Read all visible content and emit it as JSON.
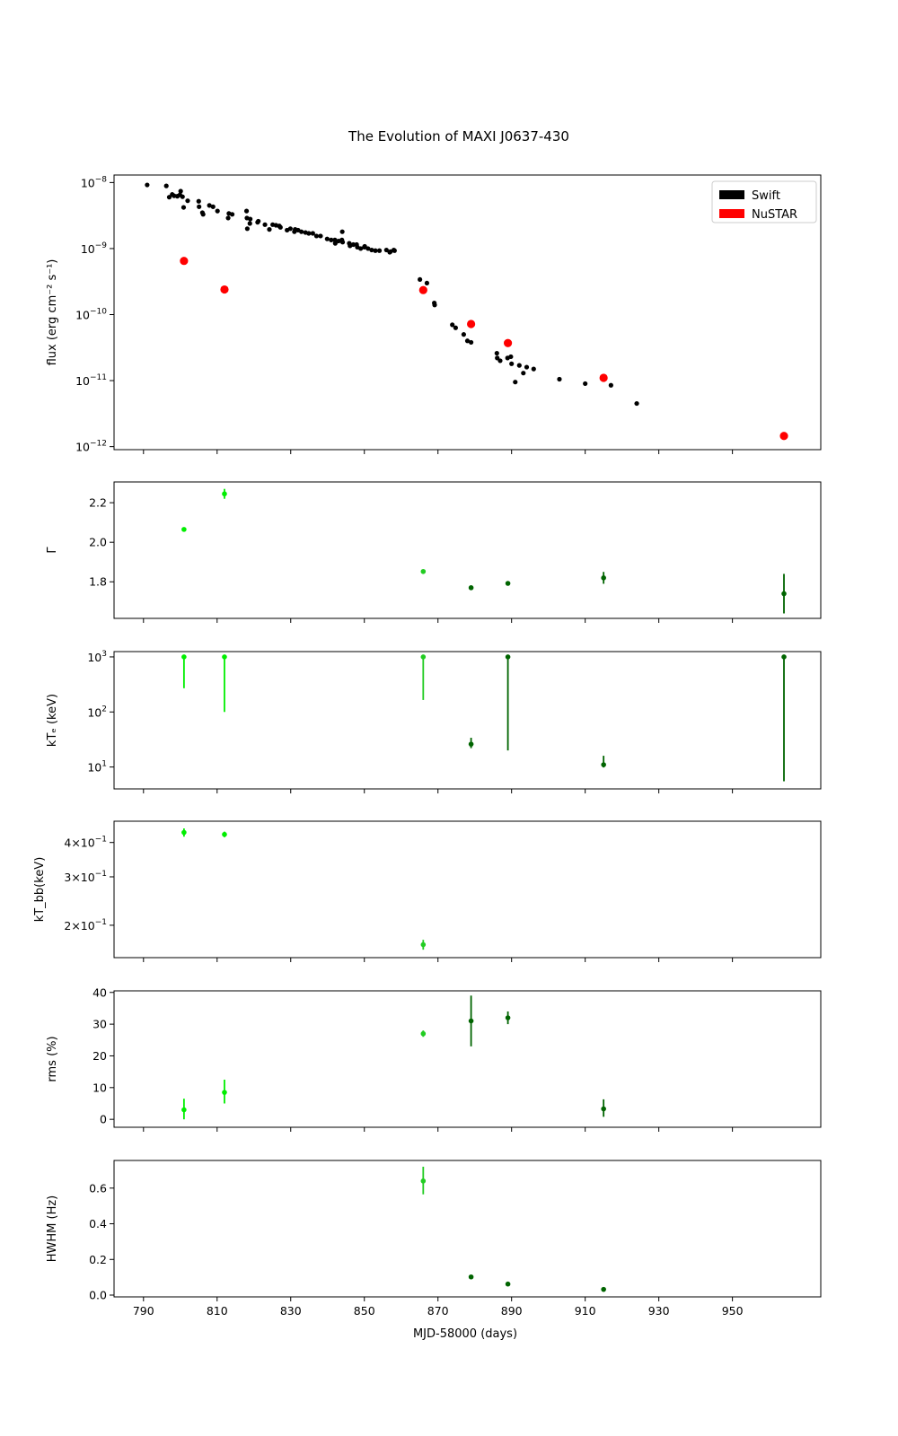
{
  "title": "The Evolution of MAXI J0637-430",
  "xlabel": "MJD-58000 (days)",
  "x_ticks": [
    790,
    810,
    830,
    850,
    870,
    890,
    910,
    930,
    950
  ],
  "colors": {
    "swift": "#000000",
    "nustar": "#ff0000",
    "early": "#00ee00",
    "mid": "#22cc22",
    "late": "#006400"
  },
  "chart_data": [
    {
      "type": "scatter",
      "ylabel": "flux (erg cm⁻² s⁻¹)",
      "yscale": "log",
      "ylim": [
        9e-13,
        1.3e-08
      ],
      "y_ticks": [
        {
          "v": 1e-08,
          "m": "10",
          "e": "−8"
        },
        {
          "v": 1e-09,
          "m": "10",
          "e": "−9"
        },
        {
          "v": 1e-10,
          "m": "10",
          "e": "−10"
        },
        {
          "v": 1e-11,
          "m": "10",
          "e": "−11"
        },
        {
          "v": 1e-12,
          "m": "10",
          "e": "−12"
        }
      ],
      "legend": {
        "placement": "top-right",
        "entries": [
          "Swift",
          "NuSTAR"
        ]
      },
      "series": [
        {
          "name": "Swift",
          "color": "#000000",
          "points": [
            [
              791.0,
              9.2e-09
            ],
            [
              796.2,
              8.9e-09
            ],
            [
              797.0,
              6e-09
            ],
            [
              797.8,
              6.6e-09
            ],
            [
              798.3,
              6.3e-09
            ],
            [
              799.2,
              6.2e-09
            ],
            [
              799.9,
              6.5e-09
            ],
            [
              800.1,
              7.4e-09
            ],
            [
              800.6,
              6.1e-09
            ],
            [
              800.9,
              4.2e-09
            ],
            [
              802.0,
              5.3e-09
            ],
            [
              805.0,
              5.2e-09
            ],
            [
              805.1,
              4.3e-09
            ],
            [
              806.0,
              3.5e-09
            ],
            [
              806.2,
              3.3e-09
            ],
            [
              807.9,
              4.5e-09
            ],
            [
              808.9,
              4.3e-09
            ],
            [
              810.1,
              3.7e-09
            ],
            [
              813.0,
              2.9e-09
            ],
            [
              813.2,
              3.4e-09
            ],
            [
              814.1,
              3.3e-09
            ],
            [
              818.0,
              3.7e-09
            ],
            [
              818.1,
              2.9e-09
            ],
            [
              818.2,
              2e-09
            ],
            [
              818.9,
              2.4e-09
            ],
            [
              819.0,
              2.8e-09
            ],
            [
              821.0,
              2.5e-09
            ],
            [
              821.2,
              2.6e-09
            ],
            [
              823.0,
              2.3e-09
            ],
            [
              824.2,
              1.95e-09
            ],
            [
              825.1,
              2.3e-09
            ],
            [
              826.0,
              2.25e-09
            ],
            [
              826.9,
              2.2e-09
            ],
            [
              827.2,
              2.1e-09
            ],
            [
              829.0,
              1.9e-09
            ],
            [
              829.9,
              2e-09
            ],
            [
              831.0,
              1.8e-09
            ],
            [
              831.2,
              1.95e-09
            ],
            [
              832.0,
              1.9e-09
            ],
            [
              832.9,
              1.8e-09
            ],
            [
              834.0,
              1.75e-09
            ],
            [
              834.9,
              1.7e-09
            ],
            [
              836.0,
              1.7e-09
            ],
            [
              837.0,
              1.55e-09
            ],
            [
              838.1,
              1.55e-09
            ],
            [
              839.9,
              1.4e-09
            ],
            [
              841.0,
              1.35e-09
            ],
            [
              842.0,
              1.35e-09
            ],
            [
              842.1,
              1.2e-09
            ],
            [
              843.0,
              1.3e-09
            ],
            [
              843.9,
              1.35e-09
            ],
            [
              844.0,
              1.8e-09
            ],
            [
              844.1,
              1.25e-09
            ],
            [
              845.9,
              1.2e-09
            ],
            [
              846.1,
              1.1e-09
            ],
            [
              847.0,
              1.15e-09
            ],
            [
              847.9,
              1.15e-09
            ],
            [
              848.1,
              1.05e-09
            ],
            [
              849.0,
              1e-09
            ],
            [
              850.0,
              1.05e-09
            ],
            [
              850.1,
              1.08e-09
            ],
            [
              851.0,
              1e-09
            ],
            [
              852.0,
              9.5e-10
            ],
            [
              853.0,
              9.3e-10
            ],
            [
              854.1,
              9.3e-10
            ],
            [
              856.0,
              9.5e-10
            ],
            [
              856.9,
              8.8e-10
            ],
            [
              857.1,
              9e-10
            ],
            [
              858.0,
              9.5e-10
            ],
            [
              858.2,
              9.3e-10
            ],
            [
              865.1,
              3.4e-10
            ],
            [
              867.0,
              3e-10
            ],
            [
              869.0,
              1.5e-10
            ],
            [
              869.1,
              1.4e-10
            ],
            [
              873.9,
              7e-11
            ],
            [
              874.8,
              6.3e-11
            ],
            [
              877.0,
              5e-11
            ],
            [
              878.0,
              4e-11
            ],
            [
              879.0,
              3.8e-11
            ],
            [
              886.0,
              2.6e-11
            ],
            [
              886.1,
              2.2e-11
            ],
            [
              886.9,
              2e-11
            ],
            [
              888.9,
              2.2e-11
            ],
            [
              889.8,
              2.3e-11
            ],
            [
              890.0,
              1.8e-11
            ],
            [
              891.0,
              9.5e-12
            ],
            [
              892.1,
              1.7e-11
            ],
            [
              893.2,
              1.3e-11
            ],
            [
              894.1,
              1.6e-11
            ],
            [
              896.0,
              1.5e-11
            ],
            [
              903.0,
              1.05e-11
            ],
            [
              910.0,
              9e-12
            ],
            [
              917.0,
              8.5e-12
            ],
            [
              924.0,
              4.5e-12
            ]
          ]
        },
        {
          "name": "NuSTAR",
          "color": "#ff0000",
          "points": [
            [
              801.0,
              6.5e-10
            ],
            [
              812.0,
              2.4e-10
            ],
            [
              866.0,
              2.35e-10
            ],
            [
              879.0,
              7.2e-11
            ],
            [
              889.0,
              3.7e-11
            ],
            [
              915.0,
              1.1e-11
            ],
            [
              964.0,
              1.45e-12
            ]
          ]
        }
      ]
    },
    {
      "type": "scatter",
      "ylabel": "Γ",
      "yscale": "linear",
      "ylim": [
        1.615,
        2.305
      ],
      "y_ticks": [
        {
          "v": 1.8,
          "t": "1.8"
        },
        {
          "v": 2.0,
          "t": "2.0"
        },
        {
          "v": 2.2,
          "t": "2.2"
        }
      ],
      "points": [
        {
          "x": 801,
          "y": 2.065,
          "lo": 2.065,
          "hi": 2.065,
          "c": "early"
        },
        {
          "x": 812,
          "y": 2.245,
          "lo": 2.22,
          "hi": 2.27,
          "c": "early"
        },
        {
          "x": 866,
          "y": 1.852,
          "lo": 1.852,
          "hi": 1.852,
          "c": "mid"
        },
        {
          "x": 879,
          "y": 1.77,
          "lo": 1.76,
          "hi": 1.78,
          "c": "late"
        },
        {
          "x": 889,
          "y": 1.792,
          "lo": 1.788,
          "hi": 1.796,
          "c": "late"
        },
        {
          "x": 915,
          "y": 1.82,
          "lo": 1.79,
          "hi": 1.85,
          "c": "late"
        },
        {
          "x": 964,
          "y": 1.74,
          "lo": 1.64,
          "hi": 1.84,
          "c": "late"
        }
      ]
    },
    {
      "type": "scatter",
      "ylabel": "kTₑ (keV)",
      "yscale": "log",
      "ylim": [
        4,
        1250
      ],
      "y_ticks": [
        {
          "v": 10,
          "m": "10",
          "e": "1"
        },
        {
          "v": 100,
          "m": "10",
          "e": "2"
        },
        {
          "v": 1000,
          "m": "10",
          "e": "3"
        }
      ],
      "points": [
        {
          "x": 801,
          "y": 1000,
          "lo": 270,
          "hi": 1000,
          "c": "early"
        },
        {
          "x": 812,
          "y": 1000,
          "lo": 100,
          "hi": 1000,
          "c": "early"
        },
        {
          "x": 866,
          "y": 1000,
          "lo": 165,
          "hi": 1000,
          "c": "mid"
        },
        {
          "x": 879,
          "y": 26,
          "lo": 22,
          "hi": 34,
          "c": "late"
        },
        {
          "x": 889,
          "y": 1000,
          "lo": 20,
          "hi": 1000,
          "c": "late"
        },
        {
          "x": 915,
          "y": 11,
          "lo": 9.8,
          "hi": 16,
          "c": "late"
        },
        {
          "x": 964,
          "y": 1000,
          "lo": 5.5,
          "hi": 1000,
          "c": "late"
        }
      ]
    },
    {
      "type": "scatter",
      "ylabel": "kT_bb(keV)",
      "yscale": "log",
      "ylim": [
        0.1525,
        0.478
      ],
      "y_ticks": [
        {
          "v": 0.2,
          "m": "2×10",
          "e": "−1"
        },
        {
          "v": 0.3,
          "m": "3×10",
          "e": "−1"
        },
        {
          "v": 0.4,
          "m": "4×10",
          "e": "−1"
        }
      ],
      "points": [
        {
          "x": 801,
          "y": 0.435,
          "lo": 0.42,
          "hi": 0.45,
          "c": "early"
        },
        {
          "x": 812,
          "y": 0.428,
          "lo": 0.418,
          "hi": 0.438,
          "c": "early"
        },
        {
          "x": 866,
          "y": 0.17,
          "lo": 0.163,
          "hi": 0.177,
          "c": "mid"
        }
      ]
    },
    {
      "type": "scatter",
      "ylabel": "rms (%)",
      "yscale": "linear",
      "ylim": [
        -2.5,
        40.5
      ],
      "y_ticks": [
        {
          "v": 0,
          "t": "0"
        },
        {
          "v": 10,
          "t": "10"
        },
        {
          "v": 20,
          "t": "20"
        },
        {
          "v": 30,
          "t": "30"
        },
        {
          "v": 40,
          "t": "40"
        }
      ],
      "points": [
        {
          "x": 801,
          "y": 3,
          "lo": 0,
          "hi": 6.5,
          "c": "early"
        },
        {
          "x": 812,
          "y": 8.5,
          "lo": 5,
          "hi": 12.5,
          "c": "early"
        },
        {
          "x": 866,
          "y": 27,
          "lo": 26,
          "hi": 28,
          "c": "mid"
        },
        {
          "x": 879,
          "y": 31,
          "lo": 23,
          "hi": 39,
          "c": "late"
        },
        {
          "x": 889,
          "y": 32,
          "lo": 30,
          "hi": 34,
          "c": "late"
        },
        {
          "x": 915,
          "y": 3.3,
          "lo": 0.8,
          "hi": 6.3,
          "c": "late"
        }
      ]
    },
    {
      "type": "scatter",
      "ylabel": "HWHM (Hz)",
      "yscale": "linear",
      "ylim": [
        -0.01,
        0.755
      ],
      "y_ticks": [
        {
          "v": 0,
          "t": "0.0"
        },
        {
          "v": 0.2,
          "t": "0.2"
        },
        {
          "v": 0.4,
          "t": "0.4"
        },
        {
          "v": 0.6,
          "t": "0.6"
        }
      ],
      "points": [
        {
          "x": 866,
          "y": 0.64,
          "lo": 0.565,
          "hi": 0.72,
          "c": "mid"
        },
        {
          "x": 879,
          "y": 0.102,
          "lo": 0.102,
          "hi": 0.102,
          "c": "late"
        },
        {
          "x": 889,
          "y": 0.062,
          "lo": 0.062,
          "hi": 0.062,
          "c": "late"
        },
        {
          "x": 915,
          "y": 0.032,
          "lo": 0.032,
          "hi": 0.032,
          "c": "late"
        }
      ]
    }
  ]
}
